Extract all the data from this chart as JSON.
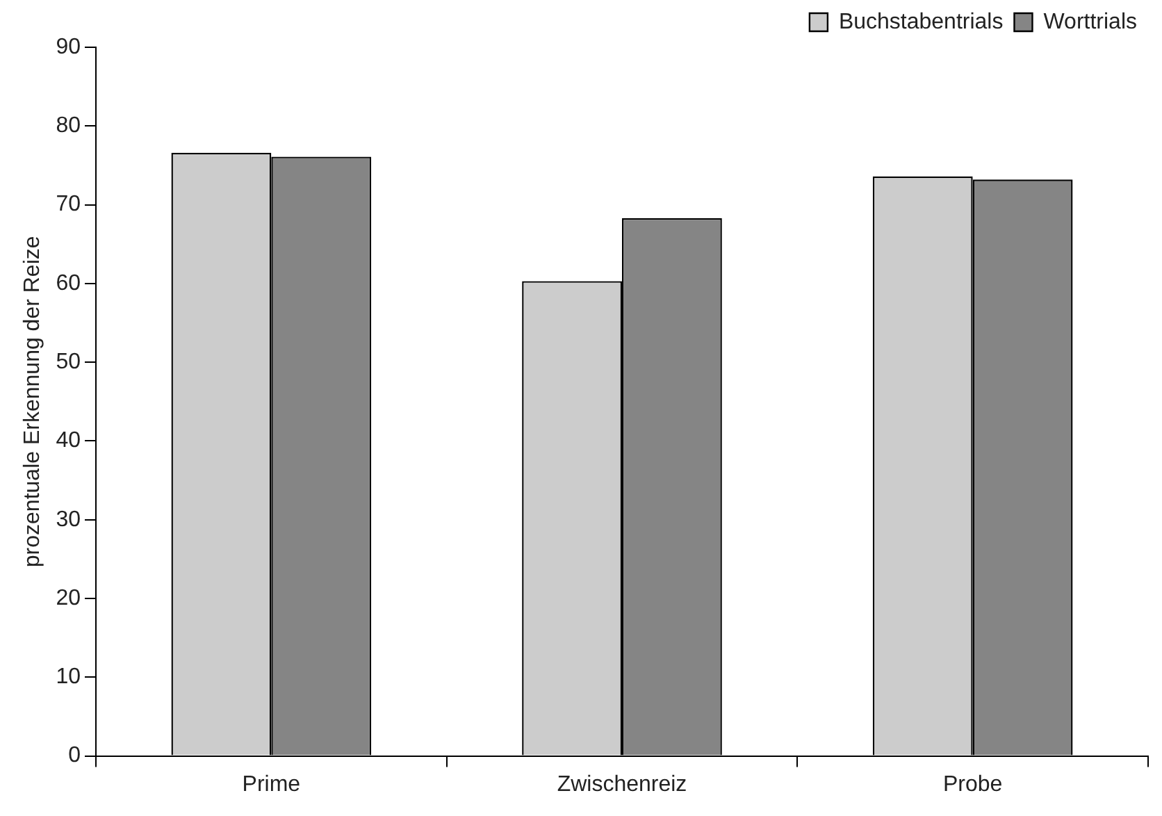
{
  "chart_data": {
    "type": "bar",
    "ylabel": "prozentuale Erkennung der Reize",
    "categories": [
      "Prime",
      "Zwischenreiz",
      "Probe"
    ],
    "series": [
      {
        "name": "Buchstabentrials",
        "color": "#cccccc",
        "values": [
          76.6,
          60.3,
          73.6
        ]
      },
      {
        "name": "Worttrials",
        "color": "#858585",
        "values": [
          76.1,
          68.3,
          73.2
        ]
      }
    ],
    "ylim": [
      0,
      90
    ],
    "yticks": [
      0,
      10,
      20,
      30,
      40,
      50,
      60,
      70,
      80,
      90
    ],
    "grid": false,
    "legend": "top right"
  }
}
